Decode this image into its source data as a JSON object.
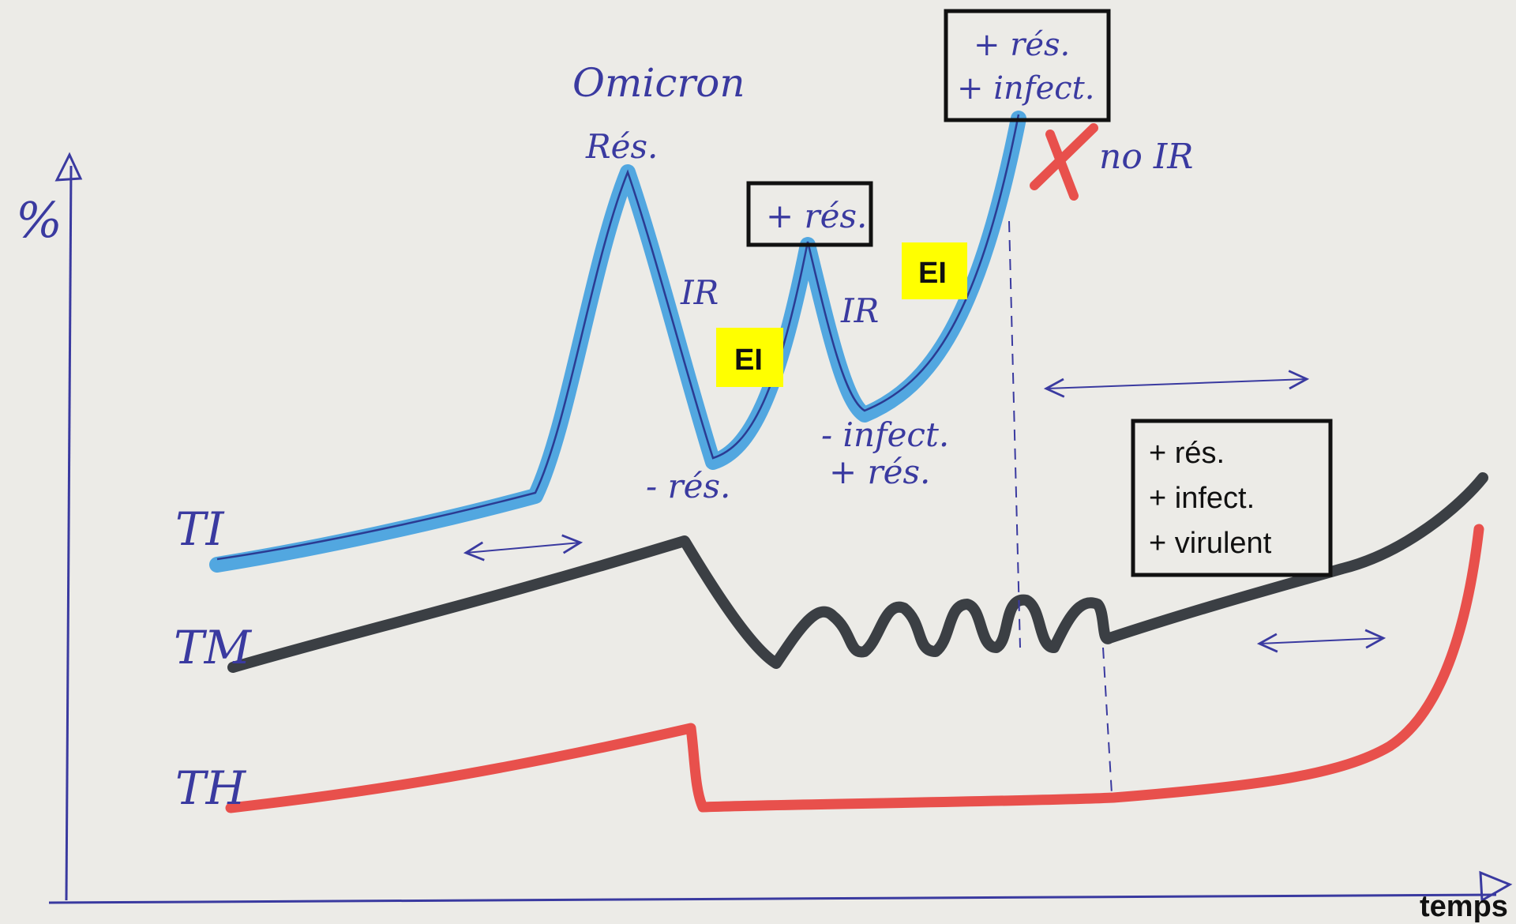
{
  "axes": {
    "y_label": "%",
    "x_label": "temps"
  },
  "curves": [
    {
      "label": "TI",
      "color": "#4aa3df"
    },
    {
      "label": "TM",
      "color": "#3b3f44"
    },
    {
      "label": "TH",
      "color": "#e8504c"
    }
  ],
  "annotations": {
    "omicron": "Omicron",
    "res_peak": "Rés.",
    "plus_res_box": "+ rés.",
    "plus_res_infect_box": [
      "+ rés.",
      "+ infect."
    ],
    "no_ir": "no IR",
    "ir_1": "IR",
    "ir_2": "IR",
    "minus_res": "- rés.",
    "minus_infect_plus_res": [
      "- infect.",
      "+ rés."
    ],
    "ei_1": "EI",
    "ei_2": "EI",
    "summary_box": [
      "+ rés.",
      "+ infect.",
      "+ virulent"
    ]
  },
  "colors": {
    "paper": "#ecebe7",
    "pen": "#3a3aa0",
    "highlight_yellow": "#ffff00",
    "ti_blue": "#4aa3df",
    "tm_dark": "#3b3f44",
    "th_red": "#e8504c",
    "cross_red": "#e8504c"
  }
}
